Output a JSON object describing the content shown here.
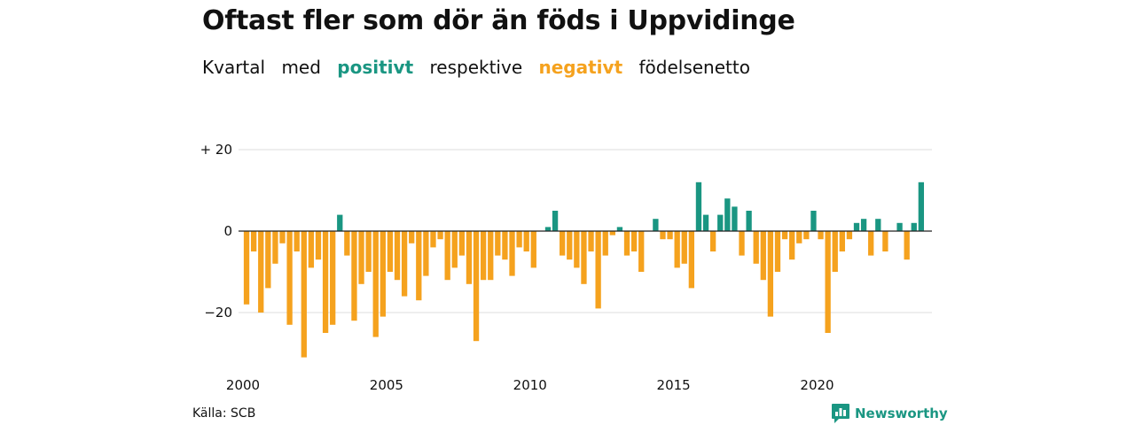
{
  "title": "Oftast fler som dör än föds i Uppvidinge",
  "subtitle": {
    "part1": "Kvartal",
    "part2": "med",
    "positive_word": "positivt",
    "part3": "respektive",
    "negative_word": "negativt",
    "part4": "födelsenetto"
  },
  "colors": {
    "positive": "#1a9682",
    "negative": "#f5a21e",
    "grid": "#dddddd",
    "zero_line": "#222222"
  },
  "source": "Källa: SCB",
  "logo": {
    "text": "Newsworthy",
    "icon": "newsworthy-logo-icon"
  },
  "chart_data": {
    "type": "bar",
    "title": "Oftast fler som dör än föds i Uppvidinge",
    "subtitle": "Kvartal med positivt respektive negativt födelsenetto",
    "xlabel": "",
    "ylabel": "",
    "ylim": [
      -33,
      22
    ],
    "y_ticks": [
      20,
      0,
      -20
    ],
    "y_tick_labels": [
      "+ 20",
      "0",
      "−20"
    ],
    "x_tick_labels": [
      "2000",
      "2005",
      "2010",
      "2015",
      "2020"
    ],
    "x_tick_positions": [
      2000,
      2005,
      2010,
      2015,
      2020
    ],
    "categories": [
      "2000 Q1",
      "2000 Q2",
      "2000 Q3",
      "2000 Q4",
      "2001 Q1",
      "2001 Q2",
      "2001 Q3",
      "2001 Q4",
      "2002 Q1",
      "2002 Q2",
      "2002 Q3",
      "2002 Q4",
      "2003 Q1",
      "2003 Q2",
      "2003 Q3",
      "2003 Q4",
      "2004 Q1",
      "2004 Q2",
      "2004 Q3",
      "2004 Q4",
      "2005 Q1",
      "2005 Q2",
      "2005 Q3",
      "2005 Q4",
      "2006 Q1",
      "2006 Q2",
      "2006 Q3",
      "2006 Q4",
      "2007 Q1",
      "2007 Q2",
      "2007 Q3",
      "2007 Q4",
      "2008 Q1",
      "2008 Q2",
      "2008 Q3",
      "2008 Q4",
      "2009 Q1",
      "2009 Q2",
      "2009 Q3",
      "2009 Q4",
      "2010 Q1",
      "2010 Q2",
      "2010 Q3",
      "2010 Q4",
      "2011 Q1",
      "2011 Q2",
      "2011 Q3",
      "2011 Q4",
      "2012 Q1",
      "2012 Q2",
      "2012 Q3",
      "2012 Q4",
      "2013 Q1",
      "2013 Q2",
      "2013 Q3",
      "2013 Q4",
      "2014 Q1",
      "2014 Q2",
      "2014 Q3",
      "2014 Q4",
      "2015 Q1",
      "2015 Q2",
      "2015 Q3",
      "2015 Q4",
      "2016 Q1",
      "2016 Q2",
      "2016 Q3",
      "2016 Q4",
      "2017 Q1",
      "2017 Q2",
      "2017 Q3",
      "2017 Q4",
      "2018 Q1",
      "2018 Q2",
      "2018 Q3",
      "2018 Q4",
      "2019 Q1",
      "2019 Q2",
      "2019 Q3",
      "2019 Q4",
      "2020 Q1",
      "2020 Q2",
      "2020 Q3",
      "2020 Q4",
      "2021 Q1",
      "2021 Q2",
      "2021 Q3",
      "2021 Q4",
      "2022 Q1",
      "2022 Q2",
      "2022 Q3",
      "2022 Q4",
      "2023 Q1",
      "2023 Q2",
      "2023 Q3",
      "2023 Q4"
    ],
    "values": [
      -18,
      -5,
      -20,
      -14,
      -8,
      -3,
      -23,
      -5,
      -31,
      -9,
      -7,
      -25,
      -23,
      4,
      -6,
      -22,
      -13,
      -10,
      -26,
      -21,
      -10,
      -12,
      -16,
      -3,
      -17,
      -11,
      -4,
      -2,
      -12,
      -9,
      -6,
      -13,
      -27,
      -12,
      -12,
      -6,
      -7,
      -11,
      -4,
      -5,
      -9,
      0,
      1,
      5,
      -6,
      -7,
      -9,
      -13,
      -5,
      -19,
      -6,
      -1,
      1,
      -6,
      -5,
      -10,
      0,
      3,
      -2,
      -2,
      -9,
      -8,
      -14,
      12,
      4,
      -5,
      4,
      8,
      6,
      -6,
      5,
      -8,
      -12,
      -21,
      -10,
      -2,
      -7,
      -3,
      -2,
      5,
      -2,
      -25,
      -10,
      -5,
      -2,
      2,
      3,
      -6,
      3,
      -5,
      0,
      2,
      -7,
      2,
      12,
      0
    ]
  }
}
